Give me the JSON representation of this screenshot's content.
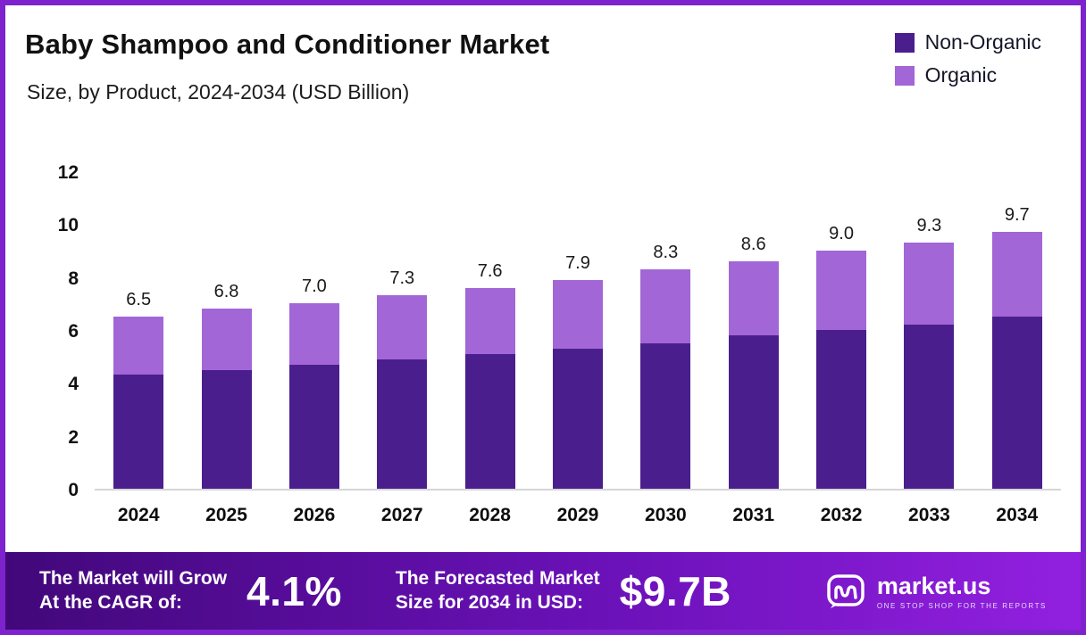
{
  "colors": {
    "non_organic": "#4b1e8e",
    "organic": "#a266d6",
    "frame_border": "#7e22ce",
    "banner_gradient_from": "#42087a",
    "banner_gradient_to": "#9320e0"
  },
  "chart_data": {
    "type": "bar",
    "variant": "stacked",
    "title": "Baby Shampoo and Conditioner Market",
    "subtitle": "Size, by Product, 2024-2034 (USD Billion)",
    "categories": [
      "2024",
      "2025",
      "2026",
      "2027",
      "2028",
      "2029",
      "2030",
      "2031",
      "2032",
      "2033",
      "2034"
    ],
    "series": [
      {
        "name": "Non-Organic",
        "color": "#4b1e8e",
        "values": [
          4.3,
          4.5,
          4.7,
          4.9,
          5.1,
          5.3,
          5.5,
          5.8,
          6.0,
          6.2,
          6.5
        ]
      },
      {
        "name": "Organic",
        "color": "#a266d6",
        "values": [
          2.2,
          2.3,
          2.3,
          2.4,
          2.5,
          2.6,
          2.8,
          2.8,
          3.0,
          3.1,
          3.2
        ]
      }
    ],
    "totals_labels": [
      "6.5",
      "6.8",
      "7.0",
      "7.3",
      "7.6",
      "7.9",
      "8.3",
      "8.6",
      "9.0",
      "9.3",
      "9.7"
    ],
    "ylim": [
      0,
      12
    ],
    "yticks": [
      0,
      2,
      4,
      6,
      8,
      10,
      12
    ],
    "grid": false,
    "legend_position": "top-right"
  },
  "banner": {
    "cagr_label_line1": "The Market will Grow",
    "cagr_label_line2": "At the CAGR of:",
    "cagr_value": "4.1%",
    "forecast_label_line1": "The Forecasted Market",
    "forecast_label_line2": "Size for 2034 in USD:",
    "forecast_value": "$9.7B",
    "brand": "market.us",
    "tagline": "ONE STOP SHOP FOR THE REPORTS"
  }
}
